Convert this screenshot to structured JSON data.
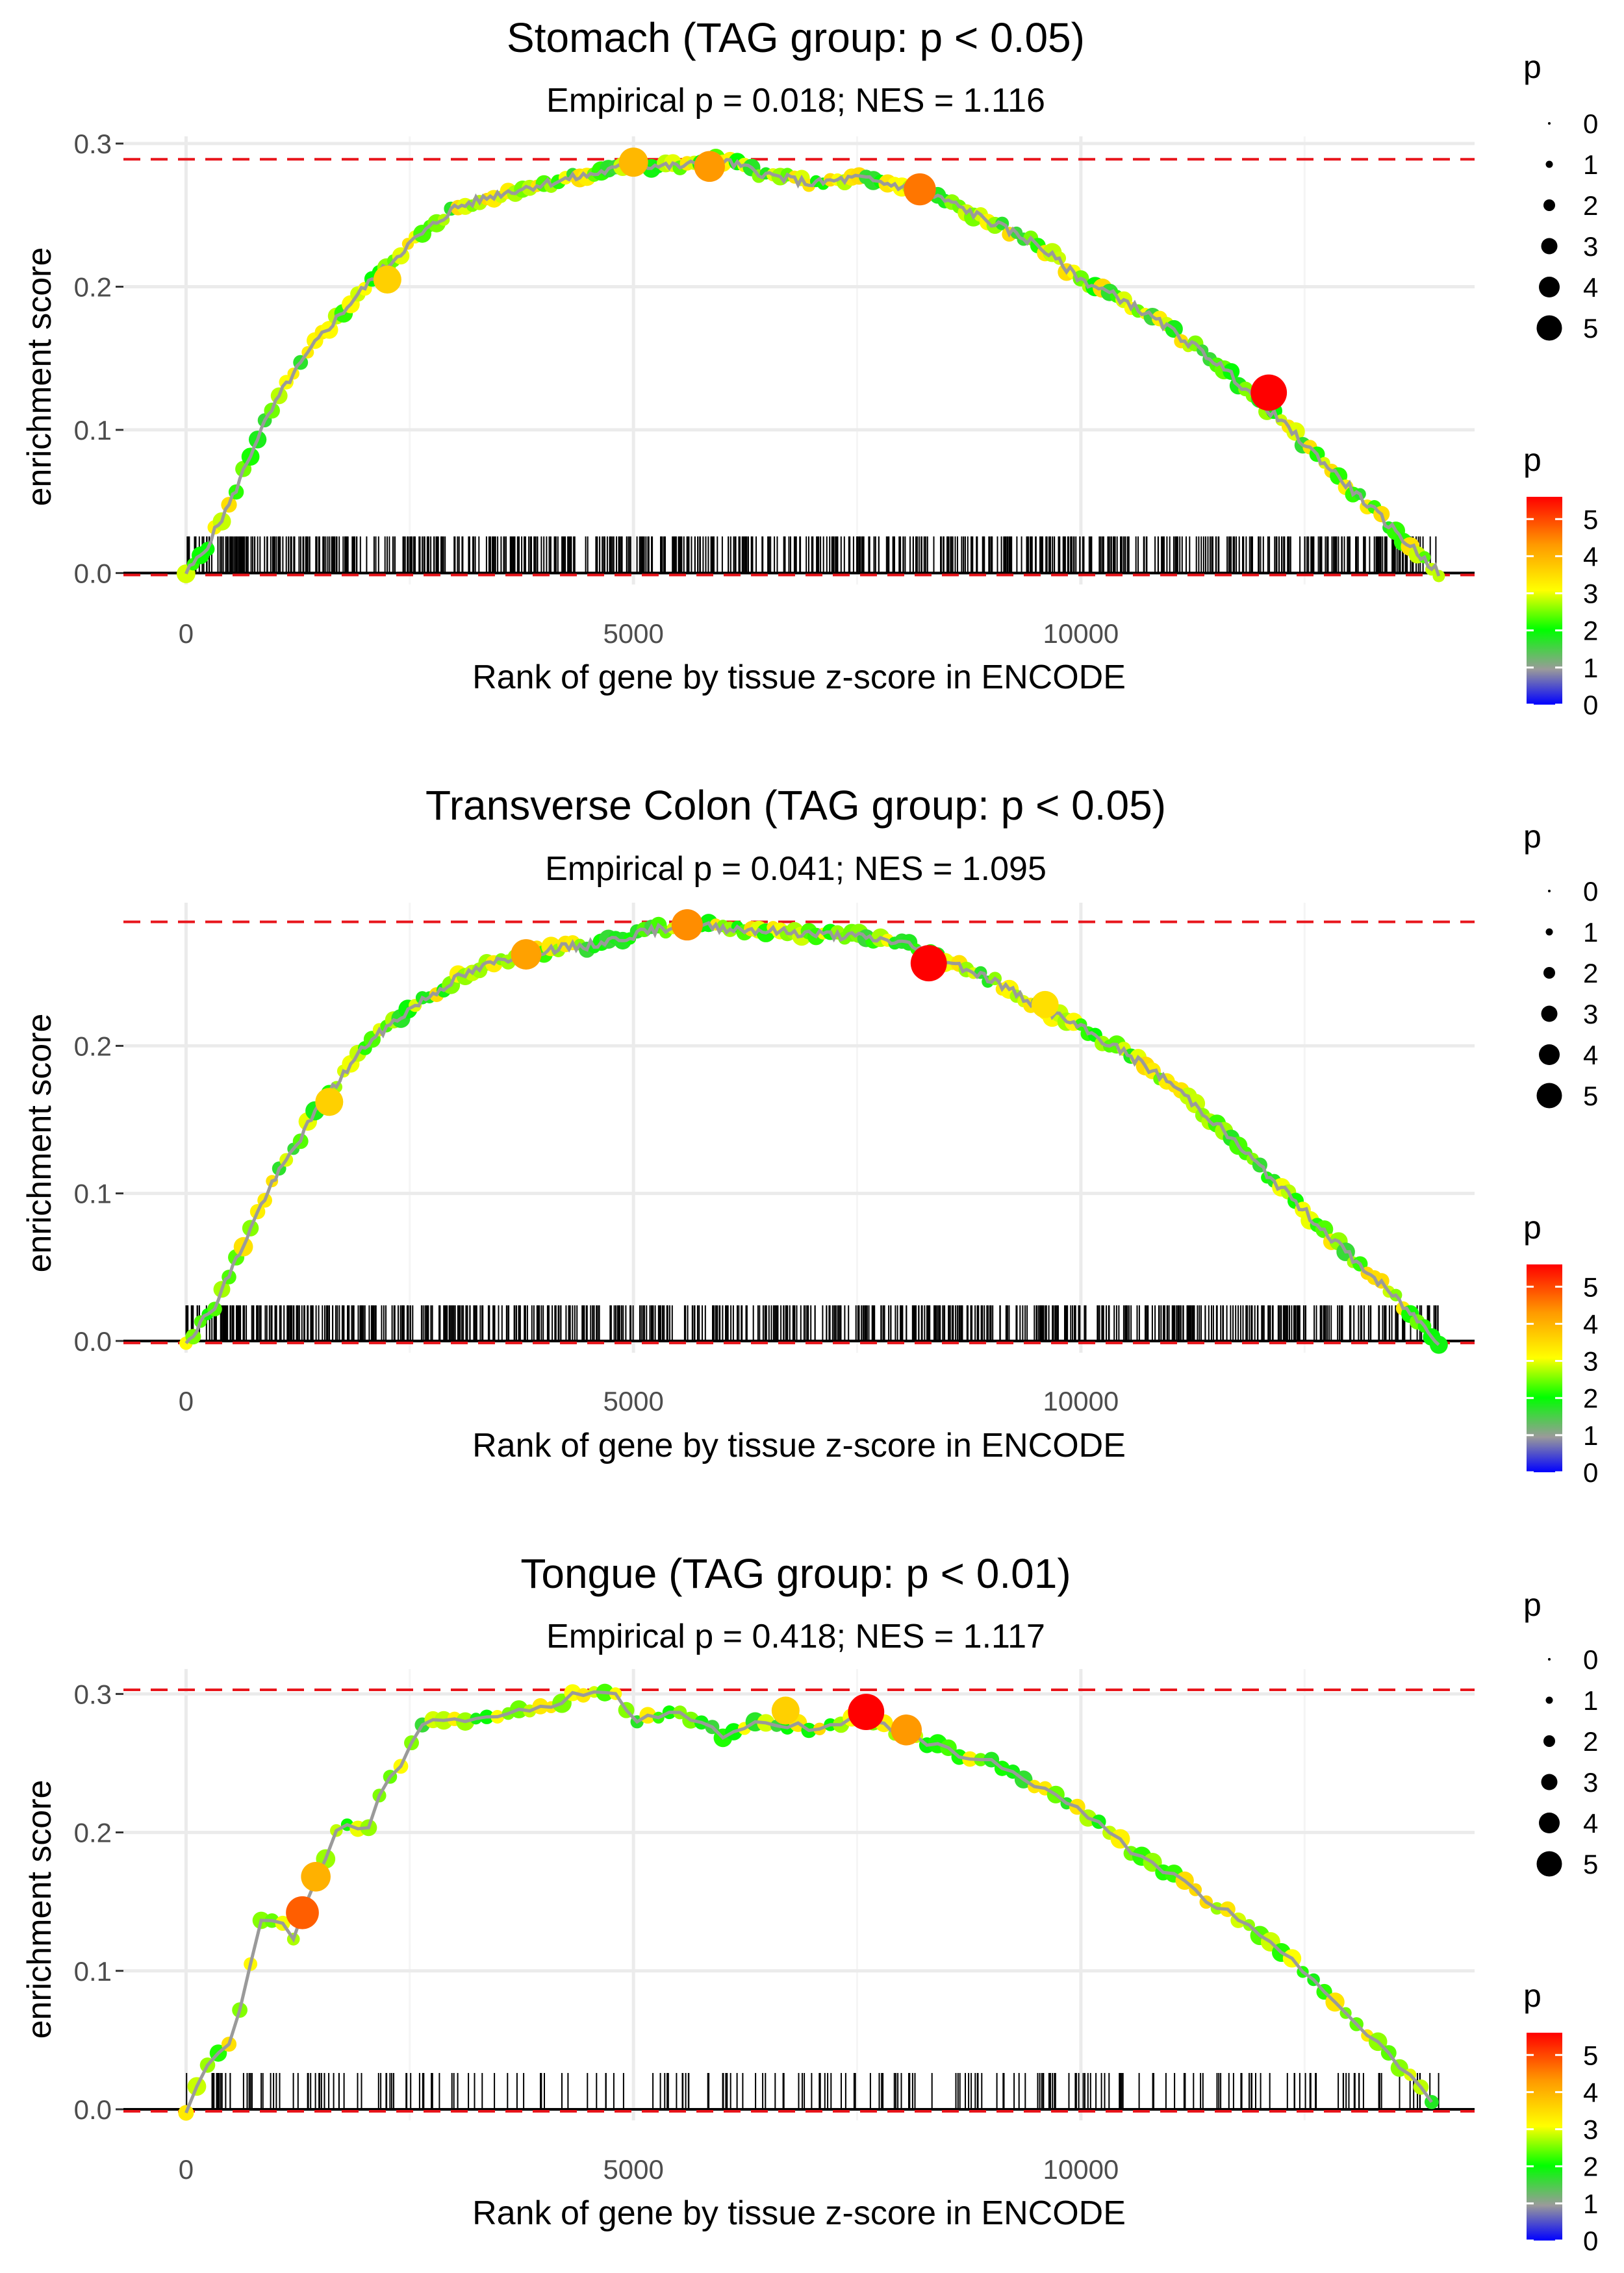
{
  "colors": {
    "threshold_line": "#e8151b",
    "grid": "#ebebeb",
    "curve": "#9a9a9a",
    "scale": [
      "#0000ff",
      "#9a9a9a",
      "#00ff00",
      "#ffff00",
      "#ff9900",
      "#ff0000"
    ]
  },
  "legend": {
    "size_title": "p",
    "size_labels": [
      "0",
      "1",
      "2",
      "3",
      "4",
      "5"
    ],
    "color_title": "p",
    "color_labels": [
      "5",
      "4",
      "3",
      "2",
      "1",
      "0"
    ]
  },
  "chart_data": [
    {
      "type": "line",
      "title": "Stomach (TAG group: p < 0.05)",
      "subtitle": "Empirical p = 0.018; NES = 1.116",
      "xlabel": "Rank of gene by tissue z-score in ENCODE",
      "ylabel": "enrichment score",
      "xlim": [
        -700,
        14400
      ],
      "ylim": [
        -0.008,
        0.305
      ],
      "x_ticks": [
        "0",
        "5000",
        "10000"
      ],
      "y_ticks": [
        "0.0",
        "0.1",
        "0.2",
        "0.3"
      ],
      "max_es": 0.289,
      "n_genes": 14000,
      "rug_density": "dense",
      "x": [
        0,
        200,
        500,
        800,
        1100,
        1500,
        2000,
        2500,
        3000,
        3500,
        4000,
        4500,
        5000,
        5500,
        6000,
        6500,
        7000,
        7500,
        8000,
        8500,
        9000,
        9500,
        10000,
        10500,
        11000,
        11500,
        12000,
        12500,
        13000,
        13500,
        14000
      ],
      "y": [
        0.0,
        0.015,
        0.05,
        0.095,
        0.13,
        0.165,
        0.2,
        0.23,
        0.255,
        0.265,
        0.272,
        0.278,
        0.285,
        0.284,
        0.288,
        0.278,
        0.272,
        0.276,
        0.27,
        0.26,
        0.245,
        0.23,
        0.205,
        0.19,
        0.17,
        0.148,
        0.12,
        0.09,
        0.06,
        0.03,
        0.0
      ],
      "highlights": [
        {
          "x": 2250,
          "y": 0.205,
          "p": 3.6
        },
        {
          "x": 5000,
          "y": 0.287,
          "p": 3.9
        },
        {
          "x": 5850,
          "y": 0.284,
          "p": 4.3
        },
        {
          "x": 8200,
          "y": 0.268,
          "p": 4.6
        },
        {
          "x": 12100,
          "y": 0.126,
          "p": 5.6
        }
      ]
    },
    {
      "type": "line",
      "title": "Transverse Colon (TAG group: p < 0.05)",
      "subtitle": "Empirical p = 0.041; NES = 1.095",
      "xlabel": "Rank of gene by tissue z-score in ENCODE",
      "ylabel": "enrichment score",
      "xlim": [
        -700,
        14400
      ],
      "ylim": [
        -0.008,
        0.297
      ],
      "x_ticks": [
        "0",
        "5000",
        "10000"
      ],
      "y_ticks": [
        "0.0",
        "0.1",
        "0.2"
      ],
      "max_es": 0.284,
      "n_genes": 14000,
      "rug_density": "dense",
      "x": [
        0,
        300,
        600,
        900,
        1200,
        1500,
        2000,
        2500,
        3000,
        3500,
        4000,
        4500,
        5000,
        5500,
        6000,
        6500,
        7000,
        7500,
        8000,
        8500,
        9000,
        9500,
        10000,
        10500,
        11000,
        11500,
        12000,
        12500,
        13000,
        13500,
        14000
      ],
      "y": [
        0.0,
        0.022,
        0.06,
        0.1,
        0.13,
        0.16,
        0.2,
        0.225,
        0.245,
        0.258,
        0.265,
        0.268,
        0.275,
        0.282,
        0.28,
        0.278,
        0.276,
        0.274,
        0.27,
        0.258,
        0.245,
        0.228,
        0.212,
        0.195,
        0.175,
        0.148,
        0.118,
        0.088,
        0.058,
        0.03,
        0.0
      ],
      "highlights": [
        {
          "x": 1600,
          "y": 0.162,
          "p": 3.6
        },
        {
          "x": 3800,
          "y": 0.262,
          "p": 4.2
        },
        {
          "x": 5600,
          "y": 0.282,
          "p": 4.4
        },
        {
          "x": 8300,
          "y": 0.256,
          "p": 5.6
        },
        {
          "x": 9600,
          "y": 0.228,
          "p": 3.4
        }
      ]
    },
    {
      "type": "line",
      "title": "Tongue (TAG group: p < 0.01)",
      "subtitle": "Empirical p = 0.418; NES = 1.117",
      "xlabel": "Rank of gene by tissue z-score in ENCODE",
      "ylabel": "enrichment score",
      "xlim": [
        -700,
        14400
      ],
      "ylim": [
        -0.008,
        0.318
      ],
      "x_ticks": [
        "0",
        "5000",
        "10000"
      ],
      "y_ticks": [
        "0.0",
        "0.1",
        "0.2",
        "0.3"
      ],
      "max_es": 0.303,
      "n_genes": 14000,
      "rug_density": "sparse",
      "x": [
        0,
        150,
        300,
        500,
        700,
        800,
        1000,
        1200,
        1300,
        1500,
        1700,
        2000,
        2200,
        2400,
        2700,
        3000,
        3500,
        4000,
        4400,
        4800,
        5000,
        5500,
        6000,
        6500,
        7000,
        7600,
        8000,
        8500,
        9000,
        9500,
        10000,
        10500,
        11000,
        11500,
        12000,
        12500,
        13000,
        13500,
        14000
      ],
      "y": [
        0.0,
        0.02,
        0.04,
        0.045,
        0.1,
        0.135,
        0.14,
        0.12,
        0.14,
        0.17,
        0.205,
        0.2,
        0.23,
        0.25,
        0.285,
        0.28,
        0.285,
        0.29,
        0.302,
        0.298,
        0.28,
        0.285,
        0.27,
        0.28,
        0.275,
        0.285,
        0.27,
        0.26,
        0.25,
        0.235,
        0.215,
        0.19,
        0.17,
        0.148,
        0.125,
        0.1,
        0.07,
        0.035,
        0.0
      ],
      "highlights": [
        {
          "x": 1300,
          "y": 0.142,
          "p": 4.8
        },
        {
          "x": 1450,
          "y": 0.168,
          "p": 4.0
        },
        {
          "x": 6700,
          "y": 0.288,
          "p": 3.6
        },
        {
          "x": 7600,
          "y": 0.287,
          "p": 5.6
        },
        {
          "x": 8050,
          "y": 0.274,
          "p": 4.3
        }
      ]
    }
  ]
}
